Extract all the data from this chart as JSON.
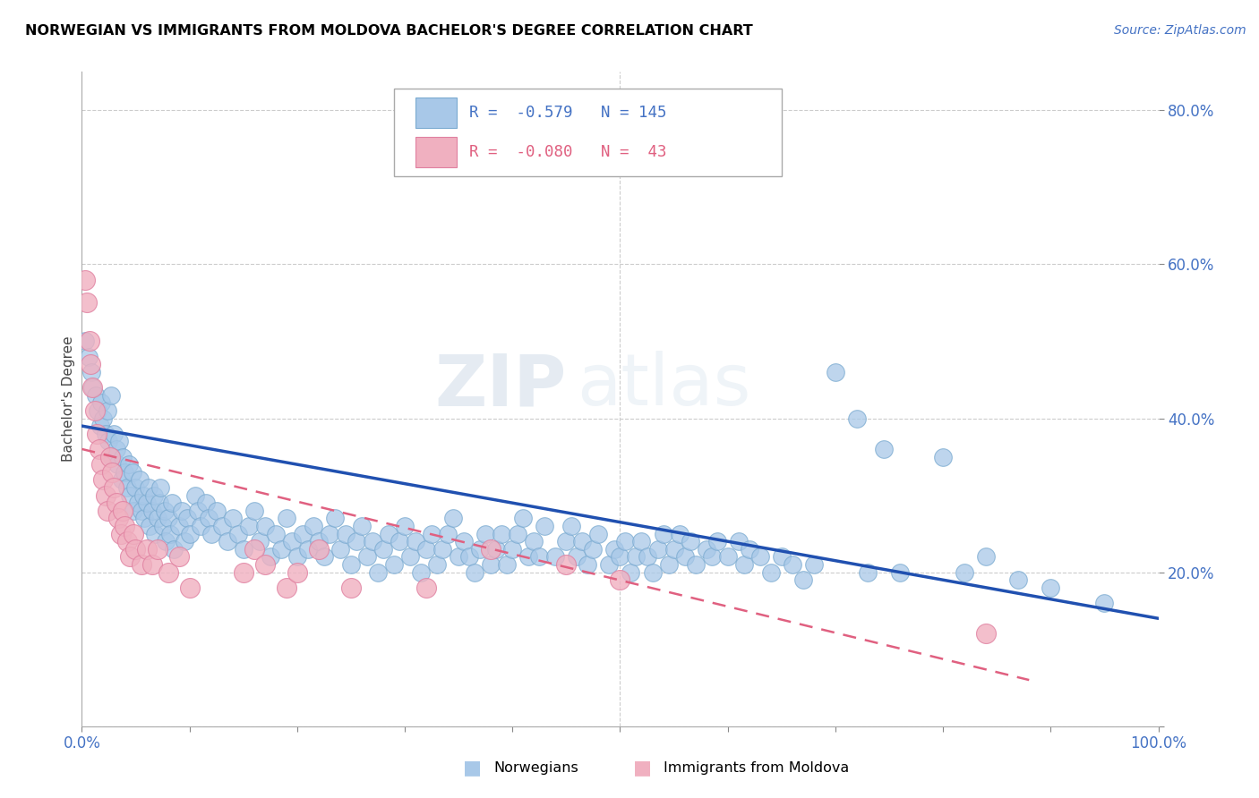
{
  "title": "NORWEGIAN VS IMMIGRANTS FROM MOLDOVA BACHELOR'S DEGREE CORRELATION CHART",
  "source": "Source: ZipAtlas.com",
  "ylabel": "Bachelor's Degree",
  "watermark_bold": "ZIP",
  "watermark_light": "atlas",
  "norwegian_color": "#a8c8e8",
  "norwegian_edge": "#7aaad0",
  "moldovan_color": "#f0b0c0",
  "moldovan_edge": "#e080a0",
  "norwegian_line_color": "#2050b0",
  "moldovan_line_color": "#e06080",
  "xlim": [
    0.0,
    1.0
  ],
  "ylim": [
    0.0,
    0.85
  ],
  "xticks": [
    0.0,
    0.1,
    0.2,
    0.3,
    0.4,
    0.5,
    0.6,
    0.7,
    0.8,
    0.9,
    1.0
  ],
  "yticks": [
    0.0,
    0.2,
    0.4,
    0.6,
    0.8
  ],
  "norwegian_trendline": [
    [
      0.0,
      0.39
    ],
    [
      1.0,
      0.14
    ]
  ],
  "moldovan_trendline": [
    [
      0.0,
      0.36
    ],
    [
      0.88,
      0.06
    ]
  ],
  "norwegian_scatter": [
    [
      0.003,
      0.5
    ],
    [
      0.006,
      0.48
    ],
    [
      0.009,
      0.46
    ],
    [
      0.01,
      0.44
    ],
    [
      0.013,
      0.43
    ],
    [
      0.015,
      0.41
    ],
    [
      0.017,
      0.39
    ],
    [
      0.018,
      0.42
    ],
    [
      0.02,
      0.4
    ],
    [
      0.022,
      0.38
    ],
    [
      0.024,
      0.41
    ],
    [
      0.025,
      0.37
    ],
    [
      0.027,
      0.43
    ],
    [
      0.028,
      0.35
    ],
    [
      0.03,
      0.38
    ],
    [
      0.032,
      0.36
    ],
    [
      0.033,
      0.34
    ],
    [
      0.035,
      0.37
    ],
    [
      0.037,
      0.32
    ],
    [
      0.038,
      0.35
    ],
    [
      0.04,
      0.33
    ],
    [
      0.042,
      0.31
    ],
    [
      0.044,
      0.34
    ],
    [
      0.045,
      0.3
    ],
    [
      0.047,
      0.33
    ],
    [
      0.048,
      0.28
    ],
    [
      0.05,
      0.31
    ],
    [
      0.052,
      0.29
    ],
    [
      0.054,
      0.32
    ],
    [
      0.055,
      0.28
    ],
    [
      0.057,
      0.3
    ],
    [
      0.058,
      0.27
    ],
    [
      0.06,
      0.29
    ],
    [
      0.062,
      0.31
    ],
    [
      0.063,
      0.26
    ],
    [
      0.065,
      0.28
    ],
    [
      0.067,
      0.3
    ],
    [
      0.068,
      0.25
    ],
    [
      0.07,
      0.27
    ],
    [
      0.072,
      0.29
    ],
    [
      0.073,
      0.31
    ],
    [
      0.075,
      0.26
    ],
    [
      0.077,
      0.28
    ],
    [
      0.078,
      0.24
    ],
    [
      0.08,
      0.27
    ],
    [
      0.082,
      0.25
    ],
    [
      0.084,
      0.29
    ],
    [
      0.085,
      0.23
    ],
    [
      0.09,
      0.26
    ],
    [
      0.093,
      0.28
    ],
    [
      0.095,
      0.24
    ],
    [
      0.098,
      0.27
    ],
    [
      0.1,
      0.25
    ],
    [
      0.105,
      0.3
    ],
    [
      0.108,
      0.28
    ],
    [
      0.11,
      0.26
    ],
    [
      0.115,
      0.29
    ],
    [
      0.118,
      0.27
    ],
    [
      0.12,
      0.25
    ],
    [
      0.125,
      0.28
    ],
    [
      0.13,
      0.26
    ],
    [
      0.135,
      0.24
    ],
    [
      0.14,
      0.27
    ],
    [
      0.145,
      0.25
    ],
    [
      0.15,
      0.23
    ],
    [
      0.155,
      0.26
    ],
    [
      0.16,
      0.28
    ],
    [
      0.165,
      0.24
    ],
    [
      0.17,
      0.26
    ],
    [
      0.175,
      0.22
    ],
    [
      0.18,
      0.25
    ],
    [
      0.185,
      0.23
    ],
    [
      0.19,
      0.27
    ],
    [
      0.195,
      0.24
    ],
    [
      0.2,
      0.22
    ],
    [
      0.205,
      0.25
    ],
    [
      0.21,
      0.23
    ],
    [
      0.215,
      0.26
    ],
    [
      0.22,
      0.24
    ],
    [
      0.225,
      0.22
    ],
    [
      0.23,
      0.25
    ],
    [
      0.235,
      0.27
    ],
    [
      0.24,
      0.23
    ],
    [
      0.245,
      0.25
    ],
    [
      0.25,
      0.21
    ],
    [
      0.255,
      0.24
    ],
    [
      0.26,
      0.26
    ],
    [
      0.265,
      0.22
    ],
    [
      0.27,
      0.24
    ],
    [
      0.275,
      0.2
    ],
    [
      0.28,
      0.23
    ],
    [
      0.285,
      0.25
    ],
    [
      0.29,
      0.21
    ],
    [
      0.295,
      0.24
    ],
    [
      0.3,
      0.26
    ],
    [
      0.305,
      0.22
    ],
    [
      0.31,
      0.24
    ],
    [
      0.315,
      0.2
    ],
    [
      0.32,
      0.23
    ],
    [
      0.325,
      0.25
    ],
    [
      0.33,
      0.21
    ],
    [
      0.335,
      0.23
    ],
    [
      0.34,
      0.25
    ],
    [
      0.345,
      0.27
    ],
    [
      0.35,
      0.22
    ],
    [
      0.355,
      0.24
    ],
    [
      0.36,
      0.22
    ],
    [
      0.365,
      0.2
    ],
    [
      0.37,
      0.23
    ],
    [
      0.375,
      0.25
    ],
    [
      0.38,
      0.21
    ],
    [
      0.385,
      0.23
    ],
    [
      0.39,
      0.25
    ],
    [
      0.395,
      0.21
    ],
    [
      0.4,
      0.23
    ],
    [
      0.405,
      0.25
    ],
    [
      0.41,
      0.27
    ],
    [
      0.415,
      0.22
    ],
    [
      0.42,
      0.24
    ],
    [
      0.425,
      0.22
    ],
    [
      0.43,
      0.26
    ],
    [
      0.44,
      0.22
    ],
    [
      0.45,
      0.24
    ],
    [
      0.455,
      0.26
    ],
    [
      0.46,
      0.22
    ],
    [
      0.465,
      0.24
    ],
    [
      0.47,
      0.21
    ],
    [
      0.475,
      0.23
    ],
    [
      0.48,
      0.25
    ],
    [
      0.49,
      0.21
    ],
    [
      0.495,
      0.23
    ],
    [
      0.5,
      0.22
    ],
    [
      0.505,
      0.24
    ],
    [
      0.51,
      0.2
    ],
    [
      0.515,
      0.22
    ],
    [
      0.52,
      0.24
    ],
    [
      0.525,
      0.22
    ],
    [
      0.53,
      0.2
    ],
    [
      0.535,
      0.23
    ],
    [
      0.54,
      0.25
    ],
    [
      0.545,
      0.21
    ],
    [
      0.55,
      0.23
    ],
    [
      0.555,
      0.25
    ],
    [
      0.56,
      0.22
    ],
    [
      0.565,
      0.24
    ],
    [
      0.57,
      0.21
    ],
    [
      0.58,
      0.23
    ],
    [
      0.585,
      0.22
    ],
    [
      0.59,
      0.24
    ],
    [
      0.6,
      0.22
    ],
    [
      0.61,
      0.24
    ],
    [
      0.615,
      0.21
    ],
    [
      0.62,
      0.23
    ],
    [
      0.63,
      0.22
    ],
    [
      0.64,
      0.2
    ],
    [
      0.65,
      0.22
    ],
    [
      0.66,
      0.21
    ],
    [
      0.67,
      0.19
    ],
    [
      0.68,
      0.21
    ],
    [
      0.7,
      0.46
    ],
    [
      0.72,
      0.4
    ],
    [
      0.73,
      0.2
    ],
    [
      0.745,
      0.36
    ],
    [
      0.76,
      0.2
    ],
    [
      0.8,
      0.35
    ],
    [
      0.82,
      0.2
    ],
    [
      0.84,
      0.22
    ],
    [
      0.87,
      0.19
    ],
    [
      0.9,
      0.18
    ],
    [
      0.95,
      0.16
    ]
  ],
  "moldovan_scatter": [
    [
      0.003,
      0.58
    ],
    [
      0.005,
      0.55
    ],
    [
      0.007,
      0.5
    ],
    [
      0.008,
      0.47
    ],
    [
      0.01,
      0.44
    ],
    [
      0.012,
      0.41
    ],
    [
      0.014,
      0.38
    ],
    [
      0.016,
      0.36
    ],
    [
      0.018,
      0.34
    ],
    [
      0.02,
      0.32
    ],
    [
      0.022,
      0.3
    ],
    [
      0.024,
      0.28
    ],
    [
      0.026,
      0.35
    ],
    [
      0.028,
      0.33
    ],
    [
      0.03,
      0.31
    ],
    [
      0.032,
      0.29
    ],
    [
      0.034,
      0.27
    ],
    [
      0.036,
      0.25
    ],
    [
      0.038,
      0.28
    ],
    [
      0.04,
      0.26
    ],
    [
      0.042,
      0.24
    ],
    [
      0.045,
      0.22
    ],
    [
      0.048,
      0.25
    ],
    [
      0.05,
      0.23
    ],
    [
      0.055,
      0.21
    ],
    [
      0.06,
      0.23
    ],
    [
      0.065,
      0.21
    ],
    [
      0.07,
      0.23
    ],
    [
      0.08,
      0.2
    ],
    [
      0.09,
      0.22
    ],
    [
      0.1,
      0.18
    ],
    [
      0.15,
      0.2
    ],
    [
      0.16,
      0.23
    ],
    [
      0.17,
      0.21
    ],
    [
      0.19,
      0.18
    ],
    [
      0.2,
      0.2
    ],
    [
      0.22,
      0.23
    ],
    [
      0.25,
      0.18
    ],
    [
      0.32,
      0.18
    ],
    [
      0.38,
      0.23
    ],
    [
      0.45,
      0.21
    ],
    [
      0.5,
      0.19
    ],
    [
      0.84,
      0.12
    ]
  ]
}
